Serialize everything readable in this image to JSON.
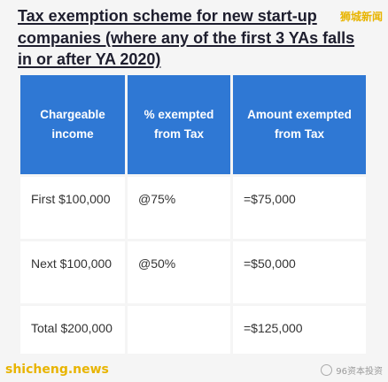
{
  "title": "Tax exemption scheme for new start-up companies (where any of the first 3 YAs falls in or after YA 2020)",
  "watermark_top": "狮城新闻",
  "watermark_bottom": "shicheng.news",
  "watermark_badge": "96资本投资",
  "table": {
    "headers": [
      "Chargeable income",
      "% exempted from Tax",
      "Amount exempted from Tax"
    ],
    "rows": [
      [
        "First $100,000",
        "@75%",
        "=$75,000"
      ],
      [
        "Next $100,000",
        "@50%",
        "=$50,000"
      ],
      [
        "Total $200,000",
        "",
        "=$125,000"
      ]
    ]
  },
  "colors": {
    "header_bg": "#2f78d4",
    "header_text": "#ffffff",
    "watermark": "#e8b400",
    "page_bg": "#f5f5f5"
  }
}
